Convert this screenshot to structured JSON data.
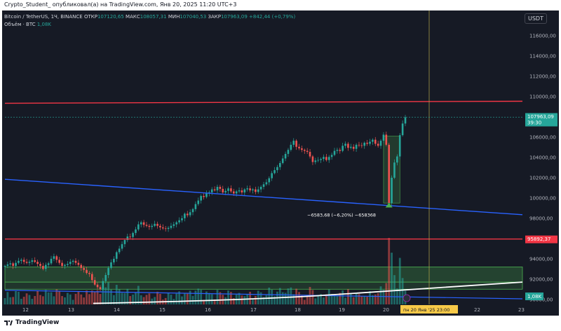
{
  "caption": "Crypto_Student_ опубликовал(а) на TradingView.com, Янв 20, 2025 11:20 UTC+3",
  "legend": {
    "symbol": "Bitcoin / TetherUS, 1Ч, BINANCE",
    "o_label": "ОТКР",
    "o_value": "107120,65",
    "h_label": "МАКС",
    "h_value": "108057,31",
    "l_label": "МИН",
    "l_value": "107040,53",
    "c_label": "ЗАКР",
    "c_value": "107963,09",
    "change": "+842,44 (+0,79%)",
    "volume_label": "Объём · BTC",
    "volume_value": "1,08K"
  },
  "currency_badge": "USDT",
  "footer": {
    "brand": "TradingView"
  },
  "colors": {
    "background": "#161a25",
    "up": "#26a69a",
    "down": "#ef5350",
    "red_line": "#f23645",
    "blue_line": "#2962ff",
    "green_zone": "#4caf50",
    "crosshair": "#b8a84a"
  },
  "chart_data": {
    "type": "candlestick",
    "timeframe": "1h",
    "x_ticks": [
      "12",
      "13",
      "14",
      "15",
      "16",
      "17",
      "18",
      "19",
      "20",
      "22",
      "23"
    ],
    "y_ticks": [
      "116000,00",
      "114000,00",
      "112000,00",
      "110000,00",
      "108000,00",
      "106000,00",
      "104000,00",
      "102000,00",
      "100000,00",
      "98000,00",
      "96000,00",
      "94000,00",
      "92000,00",
      "90000,00"
    ],
    "ylim": [
      89500,
      118500
    ],
    "last_price": "107963,09",
    "countdown": "39:30",
    "level_label": "95892,37",
    "volume_last_label": "1,08K",
    "crosshair_label": "пн 20 Янв '25   23:00",
    "measure_label": "−6583,68 (−6,20%) −658368",
    "closes": [
      93300,
      93450,
      93550,
      93300,
      93600,
      93800,
      93900,
      93700,
      93600,
      93700,
      93850,
      93700,
      93500,
      93300,
      93000,
      93400,
      93550,
      94000,
      94250,
      93900,
      93600,
      93300,
      93400,
      93500,
      93700,
      93800,
      93600,
      93400,
      93100,
      92900,
      92600,
      92500,
      91900,
      91450,
      91200,
      91000,
      91800,
      92400,
      93100,
      93650,
      94000,
      94650,
      95000,
      95450,
      95850,
      96200,
      96150,
      96550,
      96900,
      97400,
      97600,
      97350,
      97250,
      97150,
      97250,
      97450,
      97250,
      97100,
      97000,
      96950,
      97050,
      97250,
      97400,
      97600,
      97800,
      98000,
      98450,
      98300,
      98600,
      98900,
      99400,
      99750,
      100200,
      100100,
      100450,
      100550,
      100850,
      100750,
      101100,
      100900,
      100550,
      100700,
      100950,
      100650,
      100450,
      100650,
      100750,
      100550,
      100850,
      100950,
      100750,
      100850,
      100600,
      100850,
      101100,
      101350,
      101550,
      101950,
      102450,
      102750,
      103050,
      103450,
      103900,
      104350,
      104750,
      105250,
      105650,
      105050,
      104900,
      104750,
      104650,
      104550,
      104100,
      103550,
      103700,
      103750,
      103850,
      104050,
      103750,
      104050,
      104250,
      104650,
      104750,
      104650,
      105150,
      105350,
      104950,
      105050,
      104850,
      105250,
      105200,
      105150,
      105450,
      105350,
      105550,
      105750,
      105350,
      105150,
      105650,
      106250,
      105250,
      99500,
      102000,
      103500,
      104100,
      106200,
      107350,
      107963
    ]
  },
  "lines": [
    {
      "name": "resistance-line",
      "from": [
        0,
        109350
      ],
      "to": [
        152,
        109550
      ]
    },
    {
      "name": "descending-trendline",
      "from": [
        0,
        101850
      ],
      "to": [
        152,
        98350
      ]
    },
    {
      "name": "support-line",
      "from": [
        0,
        95950
      ],
      "to": [
        152,
        95950
      ]
    }
  ]
}
